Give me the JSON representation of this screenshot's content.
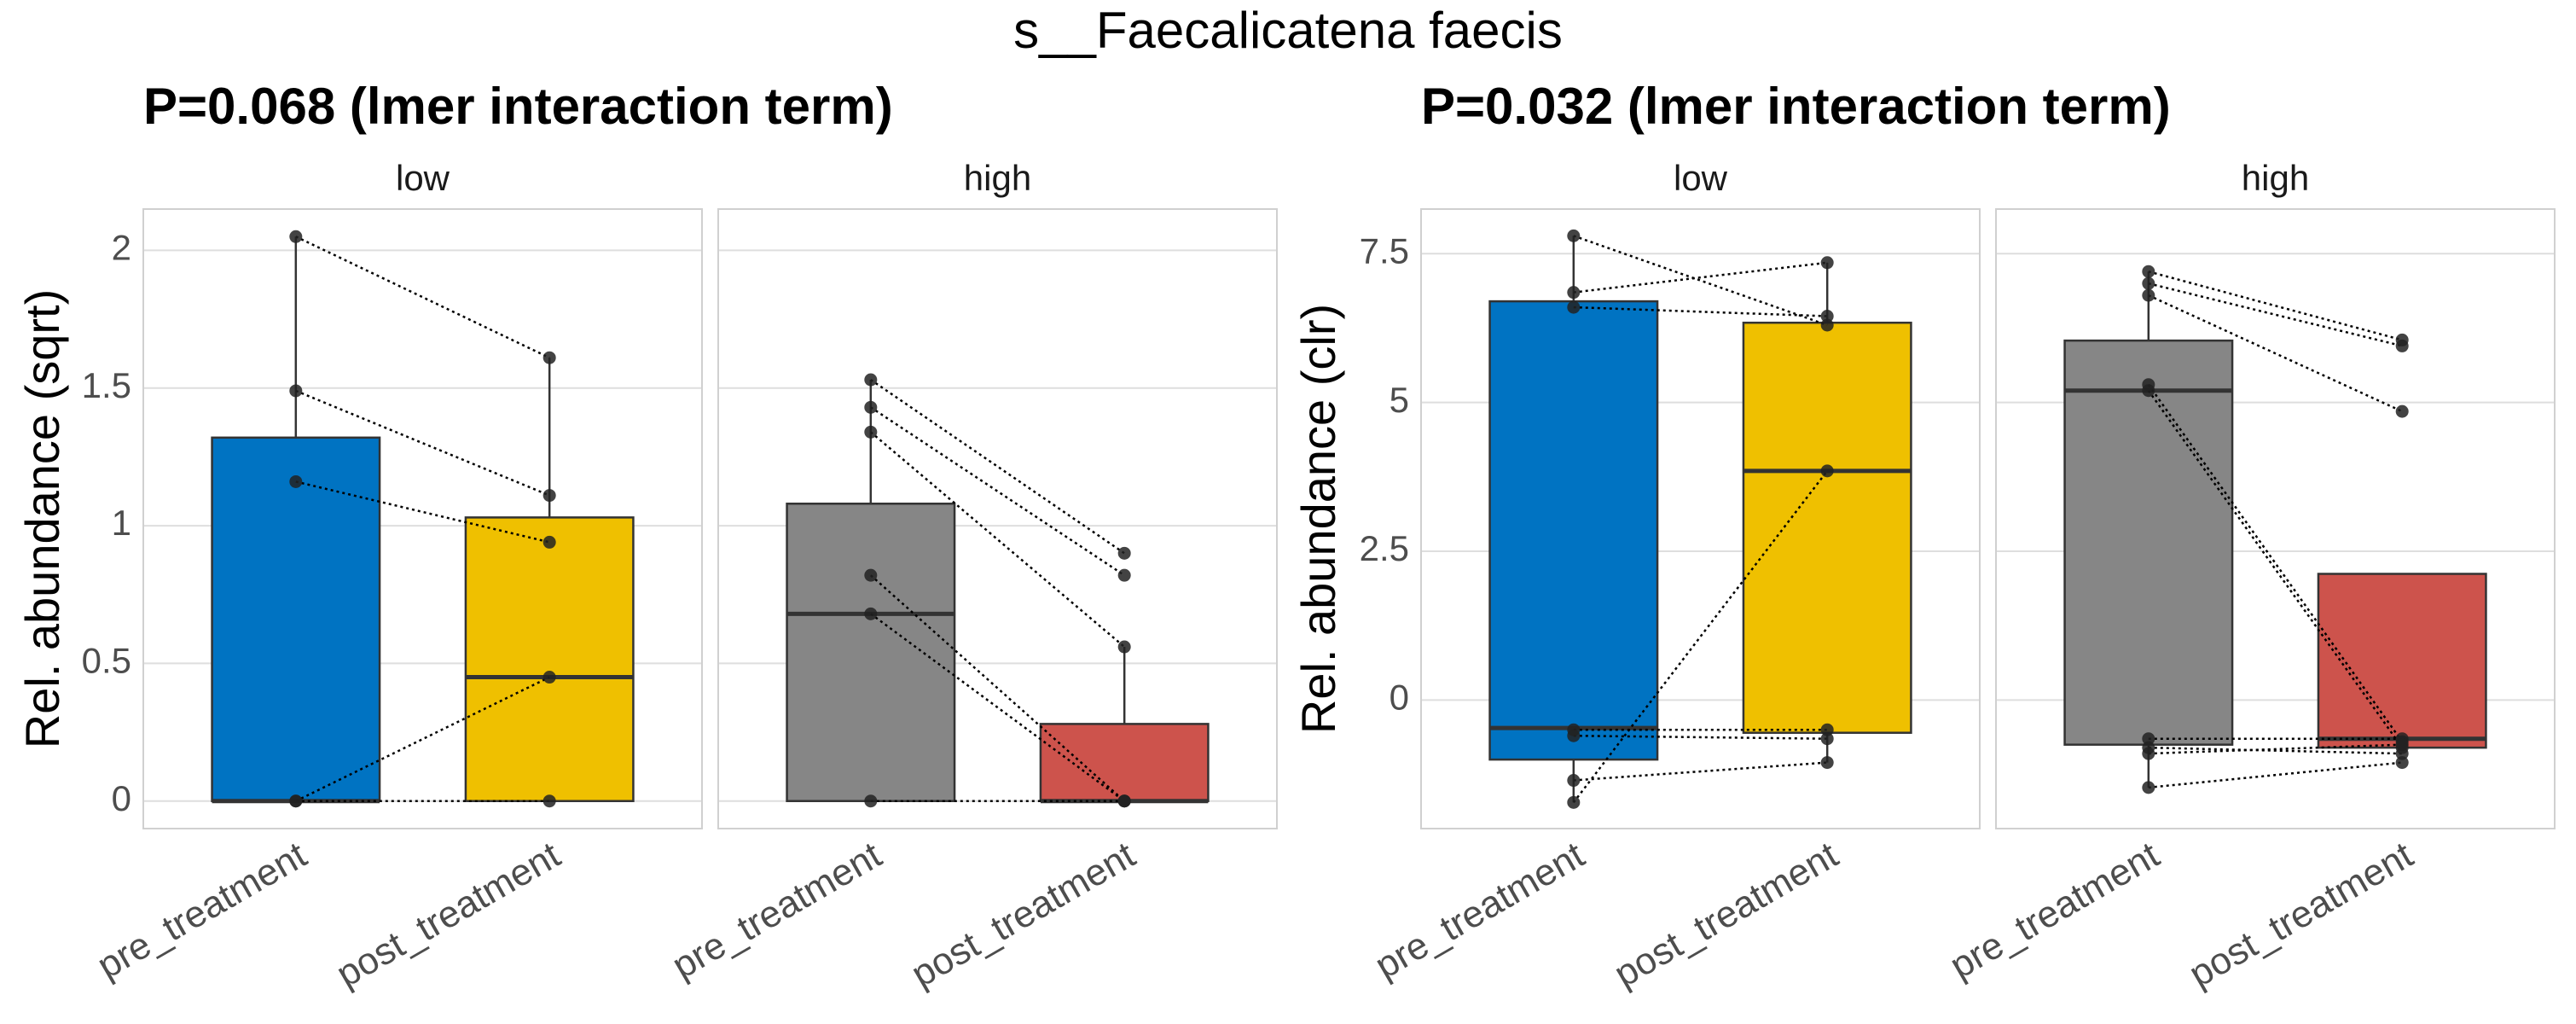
{
  "title": "s__Faecalicatena faecis",
  "chart_data": [
    {
      "type": "box",
      "title": "P=0.068 (lmer interaction term)",
      "y_label": "Rel. abundance (sqrt)",
      "ylim": [
        -0.1,
        2.15
      ],
      "yticks": [
        0,
        0.5,
        1,
        1.5,
        2
      ],
      "grid": true,
      "facets": [
        {
          "label": "low",
          "categories": [
            "pre_treatment",
            "post_treatment"
          ],
          "colors": [
            "#0073c2",
            "#efc000"
          ],
          "boxes": [
            {
              "min": 0,
              "q1": 0,
              "median": 0,
              "q3": 1.32,
              "max": 2.05
            },
            {
              "min": 0,
              "q1": 0,
              "median": 0.45,
              "q3": 1.03,
              "max": 1.61
            }
          ],
          "pairs": [
            [
              2.05,
              1.61
            ],
            [
              1.49,
              1.11
            ],
            [
              1.16,
              0.94
            ],
            [
              0,
              0.45
            ],
            [
              0,
              0
            ]
          ]
        },
        {
          "label": "high",
          "categories": [
            "pre_treatment",
            "post_treatment"
          ],
          "colors": [
            "#868686",
            "#cd534c"
          ],
          "boxes": [
            {
              "min": 0,
              "q1": 0,
              "median": 0.68,
              "q3": 1.08,
              "max": 1.53
            },
            {
              "min": 0,
              "q1": 0,
              "median": 0,
              "q3": 0.28,
              "max": 0.56
            }
          ],
          "pairs": [
            [
              1.53,
              0.9
            ],
            [
              1.43,
              0.82
            ],
            [
              1.34,
              0.56
            ],
            [
              0.82,
              0
            ],
            [
              0.68,
              0
            ],
            [
              0,
              0
            ]
          ]
        }
      ]
    },
    {
      "type": "box",
      "title": "P=0.032 (lmer interaction term)",
      "y_label": "Rel. abundance (clr)",
      "ylim": [
        -2.16,
        8.25
      ],
      "yticks": [
        0,
        2.5,
        5,
        7.5
      ],
      "grid": true,
      "facets": [
        {
          "label": "low",
          "categories": [
            "pre_treatment",
            "post_treatment"
          ],
          "colors": [
            "#0073c2",
            "#efc000"
          ],
          "boxes": [
            {
              "min": -1.72,
              "q1": -1.0,
              "median": -0.47,
              "q3": 6.7,
              "max": 7.8
            },
            {
              "min": -1.05,
              "q1": -0.55,
              "median": 3.85,
              "q3": 6.34,
              "max": 7.35
            }
          ],
          "pairs": [
            [
              7.8,
              6.3
            ],
            [
              6.85,
              7.35
            ],
            [
              6.6,
              6.45
            ],
            [
              -0.5,
              -0.5
            ],
            [
              -0.6,
              -0.65
            ],
            [
              -1.35,
              -1.05
            ],
            [
              -1.72,
              3.85
            ]
          ]
        },
        {
          "label": "high",
          "categories": [
            "pre_treatment",
            "post_treatment"
          ],
          "colors": [
            "#868686",
            "#cd534c"
          ],
          "boxes": [
            {
              "min": -1.47,
              "q1": -0.75,
              "median": 5.2,
              "q3": 6.04,
              "max": 7.2
            },
            {
              "min": -0.8,
              "q1": -0.8,
              "median": -0.65,
              "q3": 2.12,
              "max": 2.12
            }
          ],
          "pairs": [
            [
              7.2,
              6.05
            ],
            [
              7.0,
              5.95
            ],
            [
              6.8,
              4.85
            ],
            [
              5.3,
              -0.7
            ],
            [
              5.2,
              -0.8
            ],
            [
              -0.65,
              -0.65
            ],
            [
              -0.8,
              -0.9
            ],
            [
              -0.9,
              -0.75
            ],
            [
              -1.47,
              -1.05
            ]
          ]
        }
      ]
    }
  ]
}
